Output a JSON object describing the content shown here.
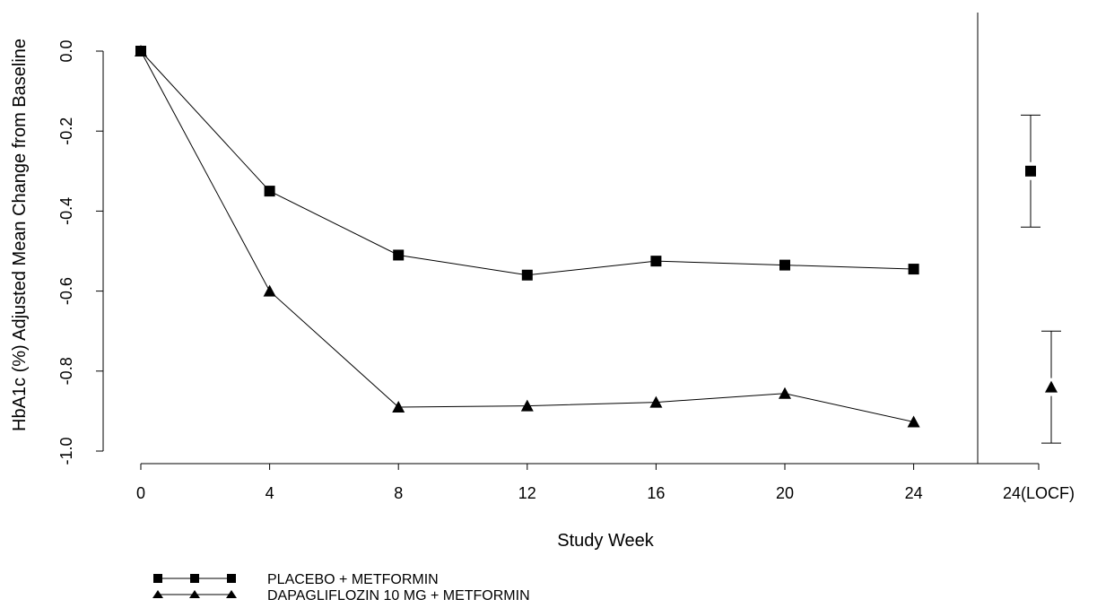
{
  "chart_data": {
    "type": "line",
    "title": "",
    "xlabel": "Study Week",
    "ylabel": "HbA1c (%) Adjusted Mean Change from Baseline",
    "ylim": [
      -1.0,
      0.0
    ],
    "y_ticks": [
      "0.0",
      "-0.2",
      "-0.4",
      "-0.6",
      "-0.8",
      "-1.0"
    ],
    "x_ticks": [
      "0",
      "4",
      "8",
      "12",
      "16",
      "20",
      "24"
    ],
    "locf_label": "24(LOCF)",
    "grid": false,
    "legend_position": "bottom-left",
    "series": [
      {
        "name": "PLACEBO + METFORMIN",
        "marker": "square",
        "x": [
          0,
          4,
          8,
          12,
          16,
          20,
          24
        ],
        "values": [
          0.0,
          -0.35,
          -0.51,
          -0.56,
          -0.525,
          -0.535,
          -0.545
        ],
        "locf": {
          "mean": -0.3,
          "lower": -0.44,
          "upper": -0.16
        }
      },
      {
        "name": "DAPAGLIFLOZIN 10 MG + METFORMIN",
        "marker": "triangle",
        "x": [
          0,
          4,
          8,
          12,
          16,
          20,
          24
        ],
        "values": [
          0.0,
          -0.6,
          -0.89,
          -0.887,
          -0.878,
          -0.856,
          -0.927
        ],
        "locf": {
          "mean": -0.84,
          "lower": -0.98,
          "upper": -0.7
        }
      }
    ]
  }
}
